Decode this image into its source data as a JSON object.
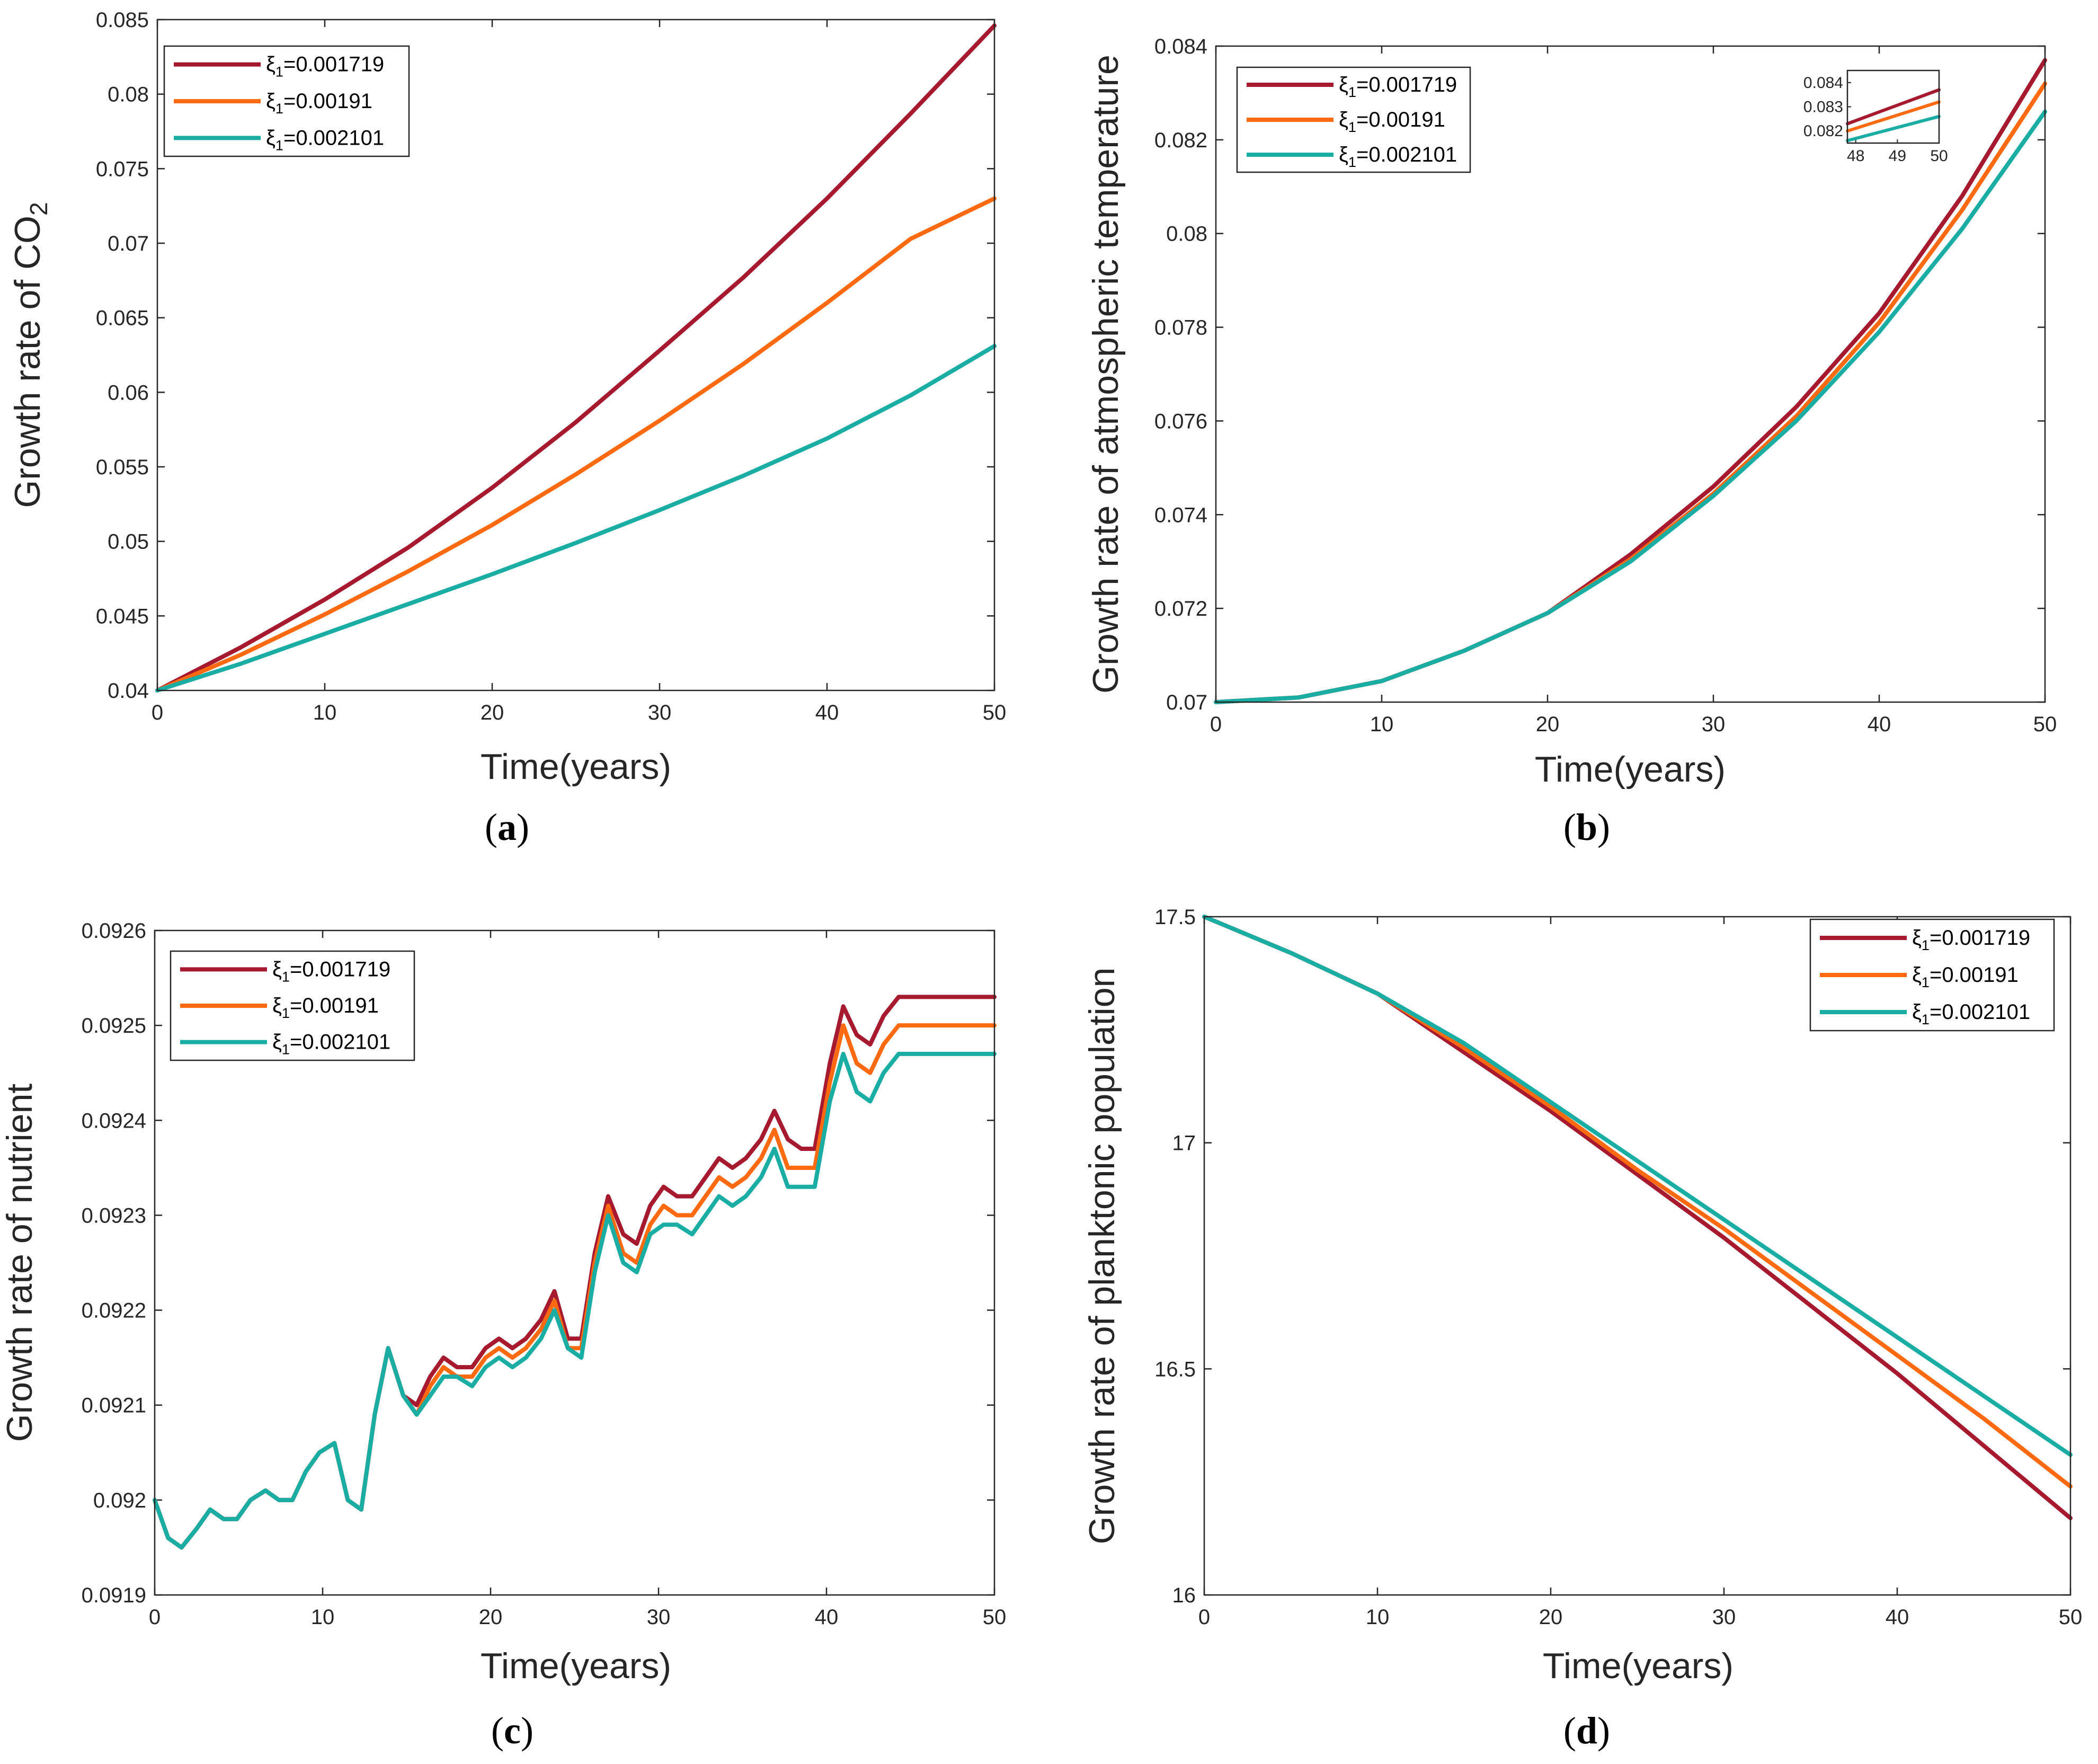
{
  "colors": {
    "s1": "#a6192e",
    "s2": "#ff6a10",
    "s3": "#19ada3"
  },
  "xlabel": "Time(years)",
  "legend": [
    {
      "sym": "ξ",
      "sub": "1",
      "value": "=0.001719"
    },
    {
      "sym": "ξ",
      "sub": "1",
      "value": "=0.00191"
    },
    {
      "sym": "ξ",
      "sub": "1",
      "value": "=0.002101"
    }
  ],
  "chart_data": [
    {
      "id": "a",
      "type": "line",
      "panel_label": "a",
      "ylabel_parts": {
        "main": "Growth rate of CO",
        "sub": "2"
      },
      "xlabel": "Time(years)",
      "xlim": [
        0,
        50
      ],
      "ylim": [
        0.04,
        0.085
      ],
      "xticks": [
        0,
        10,
        20,
        30,
        40,
        50
      ],
      "yticks": [
        0.04,
        0.045,
        0.05,
        0.055,
        0.06,
        0.065,
        0.07,
        0.075,
        0.08,
        0.085
      ],
      "ytick_labels": [
        "0.04",
        "0.045",
        "0.05",
        "0.055",
        "0.06",
        "0.065",
        "0.07",
        "0.075",
        "0.08",
        "0.085"
      ],
      "legend_position": "top-left",
      "x": [
        0,
        5,
        10,
        15,
        20,
        25,
        30,
        35,
        40,
        45,
        50
      ],
      "series": [
        {
          "name": "ξ1=0.001719",
          "values": [
            0.04,
            0.0429,
            0.0461,
            0.0496,
            0.0536,
            0.058,
            0.0628,
            0.0677,
            0.073,
            0.0787,
            0.0846
          ]
        },
        {
          "name": "ξ1=0.00191",
          "values": [
            0.04,
            0.0424,
            0.0451,
            0.048,
            0.0511,
            0.0545,
            0.0581,
            0.0619,
            0.066,
            0.0703,
            0.073
          ]
        },
        {
          "name": "ξ1=0.002101",
          "values": [
            0.04,
            0.0418,
            0.0438,
            0.0458,
            0.0478,
            0.0499,
            0.0521,
            0.0544,
            0.0569,
            0.0598,
            0.0631
          ]
        }
      ]
    },
    {
      "id": "b",
      "type": "line",
      "panel_label": "b",
      "ylabel": "Growth rate of atmospheric temperature",
      "xlabel": "Time(years)",
      "xlim": [
        0,
        50
      ],
      "ylim": [
        0.07,
        0.084
      ],
      "xticks": [
        0,
        10,
        20,
        30,
        40,
        50
      ],
      "yticks": [
        0.07,
        0.072,
        0.074,
        0.076,
        0.078,
        0.08,
        0.082,
        0.084
      ],
      "ytick_labels": [
        "0.07",
        "0.072",
        "0.074",
        "0.076",
        "0.078",
        "0.08",
        "0.082",
        "0.084"
      ],
      "legend_position": "top-left",
      "x": [
        0,
        5,
        10,
        15,
        20,
        25,
        30,
        35,
        40,
        45,
        50
      ],
      "series": [
        {
          "name": "ξ1=0.001719",
          "values": [
            0.07,
            0.0701,
            0.07045,
            0.0711,
            0.0719,
            0.07315,
            0.0746,
            0.0763,
            0.0783,
            0.0808,
            0.0837
          ]
        },
        {
          "name": "ξ1=0.00191",
          "values": [
            0.07,
            0.0701,
            0.07045,
            0.0711,
            0.0719,
            0.07305,
            0.07445,
            0.0761,
            0.0781,
            0.0805,
            0.0832
          ]
        },
        {
          "name": "ξ1=0.002101",
          "values": [
            0.07,
            0.0701,
            0.07045,
            0.0711,
            0.0719,
            0.073,
            0.0744,
            0.076,
            0.0779,
            0.0801,
            0.0826
          ]
        }
      ],
      "inset": {
        "xlim": [
          47.8,
          50
        ],
        "ylim": [
          0.0815,
          0.0845
        ],
        "xticks": [
          48,
          49,
          50
        ],
        "yticks": [
          0.082,
          0.083,
          0.084
        ],
        "ytick_labels": [
          "0.082",
          "0.083",
          "0.084"
        ],
        "x": [
          47.8,
          50
        ],
        "series": [
          {
            "name": "ξ1=0.001719",
            "values": [
              0.0823,
              0.0837
            ]
          },
          {
            "name": "ξ1=0.00191",
            "values": [
              0.082,
              0.0832
            ]
          },
          {
            "name": "ξ1=0.002101",
            "values": [
              0.0816,
              0.0826
            ]
          }
        ]
      }
    },
    {
      "id": "c",
      "type": "line",
      "panel_label": "c",
      "ylabel": "Growth rate of nutrient",
      "xlabel": "Time(years)",
      "xlim": [
        0,
        50
      ],
      "ylim": [
        0.0919,
        0.0926
      ],
      "xticks": [
        0,
        10,
        20,
        30,
        40,
        50
      ],
      "yticks": [
        0.0919,
        0.092,
        0.0921,
        0.0922,
        0.0923,
        0.0924,
        0.0925,
        0.0926
      ],
      "ytick_labels": [
        "0.0919",
        "0.092",
        "0.0921",
        "0.0922",
        "0.0923",
        "0.0924",
        "0.0925",
        "0.0926"
      ],
      "legend_position": "top-left",
      "x": [
        0,
        0.8,
        1.6,
        2.5,
        3.3,
        4.1,
        4.9,
        5.7,
        6.6,
        7.4,
        8.2,
        9.0,
        9.8,
        10.7,
        11.5,
        12.3,
        13.1,
        13.9,
        14.8,
        15.6,
        16.4,
        17.2,
        18.0,
        18.9,
        19.7,
        20.5,
        21.3,
        22.1,
        23.0,
        23.8,
        24.6,
        25.4,
        26.2,
        27.0,
        27.9,
        28.7,
        29.5,
        30.3,
        31.1,
        32.0,
        32.8,
        33.6,
        34.4,
        35.2,
        36.1,
        36.9,
        37.7,
        38.5,
        39.3,
        40.2,
        41.0,
        41.8,
        42.6,
        43.4,
        44.3,
        45.1,
        45.9,
        46.7,
        47.5,
        48.4,
        49.2,
        50.0
      ],
      "series": [
        {
          "name": "ξ1=0.001719",
          "values": [
            0.092,
            0.09196,
            0.09195,
            0.09197,
            0.09199,
            0.09198,
            0.09198,
            0.092,
            0.09201,
            0.092,
            0.092,
            0.09203,
            0.09205,
            0.09206,
            0.092,
            0.09199,
            0.09209,
            0.09216,
            0.09211,
            0.0921,
            0.09213,
            0.09215,
            0.09214,
            0.09214,
            0.09216,
            0.09217,
            0.09216,
            0.09217,
            0.09219,
            0.09222,
            0.09217,
            0.09217,
            0.09226,
            0.09232,
            0.09228,
            0.09227,
            0.09231,
            0.09233,
            0.09232,
            0.09232,
            0.09234,
            0.09236,
            0.09235,
            0.09236,
            0.09238,
            0.09241,
            0.09238,
            0.09237,
            0.09237,
            0.09246,
            0.09252,
            0.09249,
            0.09248,
            0.09251,
            0.09253,
            0.09253,
            0.09253,
            0.09253,
            0.09253,
            0.09253,
            0.09253,
            0.09253
          ]
        },
        {
          "name": "ξ1=0.00191",
          "values": [
            0.092,
            0.09196,
            0.09195,
            0.09197,
            0.09199,
            0.09198,
            0.09198,
            0.092,
            0.09201,
            0.092,
            0.092,
            0.09203,
            0.09205,
            0.09206,
            0.092,
            0.09199,
            0.09209,
            0.09216,
            0.09211,
            0.09209,
            0.09212,
            0.09214,
            0.09213,
            0.09213,
            0.09215,
            0.09216,
            0.09215,
            0.09216,
            0.09218,
            0.09221,
            0.09216,
            0.09216,
            0.09225,
            0.09231,
            0.09226,
            0.09225,
            0.09229,
            0.09231,
            0.0923,
            0.0923,
            0.09232,
            0.09234,
            0.09233,
            0.09234,
            0.09236,
            0.09239,
            0.09235,
            0.09235,
            0.09235,
            0.09244,
            0.0925,
            0.09246,
            0.09245,
            0.09248,
            0.0925,
            0.0925,
            0.0925,
            0.0925,
            0.0925,
            0.0925,
            0.0925,
            0.0925
          ]
        },
        {
          "name": "ξ1=0.002101",
          "values": [
            0.092,
            0.09196,
            0.09195,
            0.09197,
            0.09199,
            0.09198,
            0.09198,
            0.092,
            0.09201,
            0.092,
            0.092,
            0.09203,
            0.09205,
            0.09206,
            0.092,
            0.09199,
            0.09209,
            0.09216,
            0.09211,
            0.09209,
            0.09211,
            0.09213,
            0.09213,
            0.09212,
            0.09214,
            0.09215,
            0.09214,
            0.09215,
            0.09217,
            0.0922,
            0.09216,
            0.09215,
            0.09224,
            0.0923,
            0.09225,
            0.09224,
            0.09228,
            0.09229,
            0.09229,
            0.09228,
            0.0923,
            0.09232,
            0.09231,
            0.09232,
            0.09234,
            0.09237,
            0.09233,
            0.09233,
            0.09233,
            0.09242,
            0.09247,
            0.09243,
            0.09242,
            0.09245,
            0.09247,
            0.09247,
            0.09247,
            0.09247,
            0.09247,
            0.09247,
            0.09247,
            0.09247
          ]
        }
      ]
    },
    {
      "id": "d",
      "type": "line",
      "panel_label": "d",
      "ylabel": "Growth rate of planktonic population",
      "xlabel": "Time(years)",
      "xlim": [
        0,
        50
      ],
      "ylim": [
        16,
        17.5
      ],
      "xticks": [
        0,
        10,
        20,
        30,
        40,
        50
      ],
      "yticks": [
        16,
        16.5,
        17,
        17.5
      ],
      "ytick_labels": [
        "16",
        "16.5",
        "17",
        "17.5"
      ],
      "legend_position": "top-right",
      "x": [
        0,
        5,
        10,
        15,
        20,
        25,
        30,
        35,
        40,
        45,
        50
      ],
      "series": [
        {
          "name": "ξ1=0.001719",
          "values": [
            17.5,
            17.42,
            17.33,
            17.2,
            17.07,
            16.93,
            16.79,
            16.64,
            16.49,
            16.33,
            16.17
          ]
        },
        {
          "name": "ξ1=0.00191",
          "values": [
            17.5,
            17.42,
            17.33,
            17.21,
            17.08,
            16.94,
            16.81,
            16.67,
            16.53,
            16.39,
            16.24
          ]
        },
        {
          "name": "ξ1=0.002101",
          "values": [
            17.5,
            17.42,
            17.33,
            17.22,
            17.09,
            16.96,
            16.83,
            16.7,
            16.57,
            16.44,
            16.31
          ]
        }
      ]
    }
  ]
}
